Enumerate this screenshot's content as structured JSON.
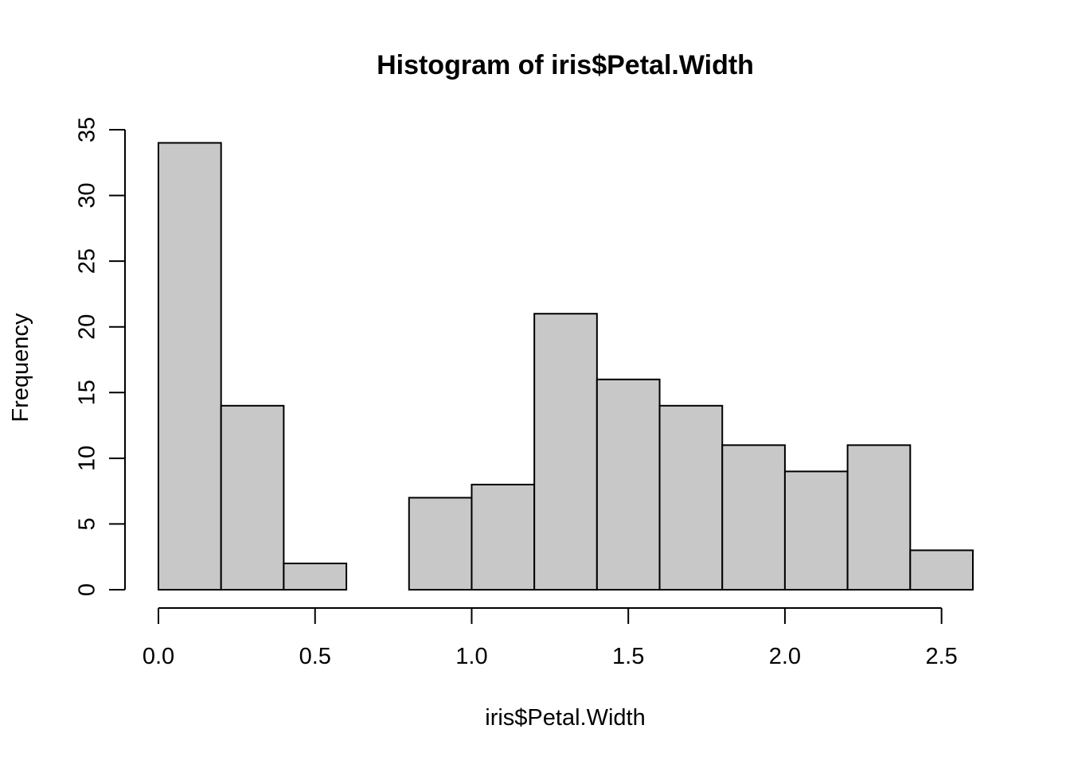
{
  "chart_data": {
    "type": "bar",
    "subtype": "histogram",
    "title": "Histogram of iris$Petal.Width",
    "xlabel": "iris$Petal.Width",
    "ylabel": "Frequency",
    "bins": [
      {
        "x0": 0.0,
        "x1": 0.2,
        "count": 34
      },
      {
        "x0": 0.2,
        "x1": 0.4,
        "count": 14
      },
      {
        "x0": 0.4,
        "x1": 0.6,
        "count": 2
      },
      {
        "x0": 0.6,
        "x1": 0.8,
        "count": 0
      },
      {
        "x0": 0.8,
        "x1": 1.0,
        "count": 7
      },
      {
        "x0": 1.0,
        "x1": 1.2,
        "count": 8
      },
      {
        "x0": 1.2,
        "x1": 1.4,
        "count": 21
      },
      {
        "x0": 1.4,
        "x1": 1.6,
        "count": 16
      },
      {
        "x0": 1.6,
        "x1": 1.8,
        "count": 14
      },
      {
        "x0": 1.8,
        "x1": 2.0,
        "count": 11
      },
      {
        "x0": 2.0,
        "x1": 2.2,
        "count": 9
      },
      {
        "x0": 2.2,
        "x1": 2.4,
        "count": 11
      },
      {
        "x0": 2.4,
        "x1": 2.6,
        "count": 3
      }
    ],
    "xticks": [
      0.0,
      0.5,
      1.0,
      1.5,
      2.0,
      2.5
    ],
    "xtick_labels": [
      "0.0",
      "0.5",
      "1.0",
      "1.5",
      "2.0",
      "2.5"
    ],
    "yticks": [
      0,
      5,
      10,
      15,
      20,
      25,
      30,
      35
    ],
    "ytick_labels": [
      "0",
      "5",
      "10",
      "15",
      "20",
      "25",
      "30",
      "35"
    ],
    "xlim": [
      0.0,
      2.6
    ],
    "ylim": [
      0,
      35
    ],
    "grid": false,
    "legend": "none",
    "bar_color": "#c8c8c8",
    "edge_color": "#000000"
  }
}
